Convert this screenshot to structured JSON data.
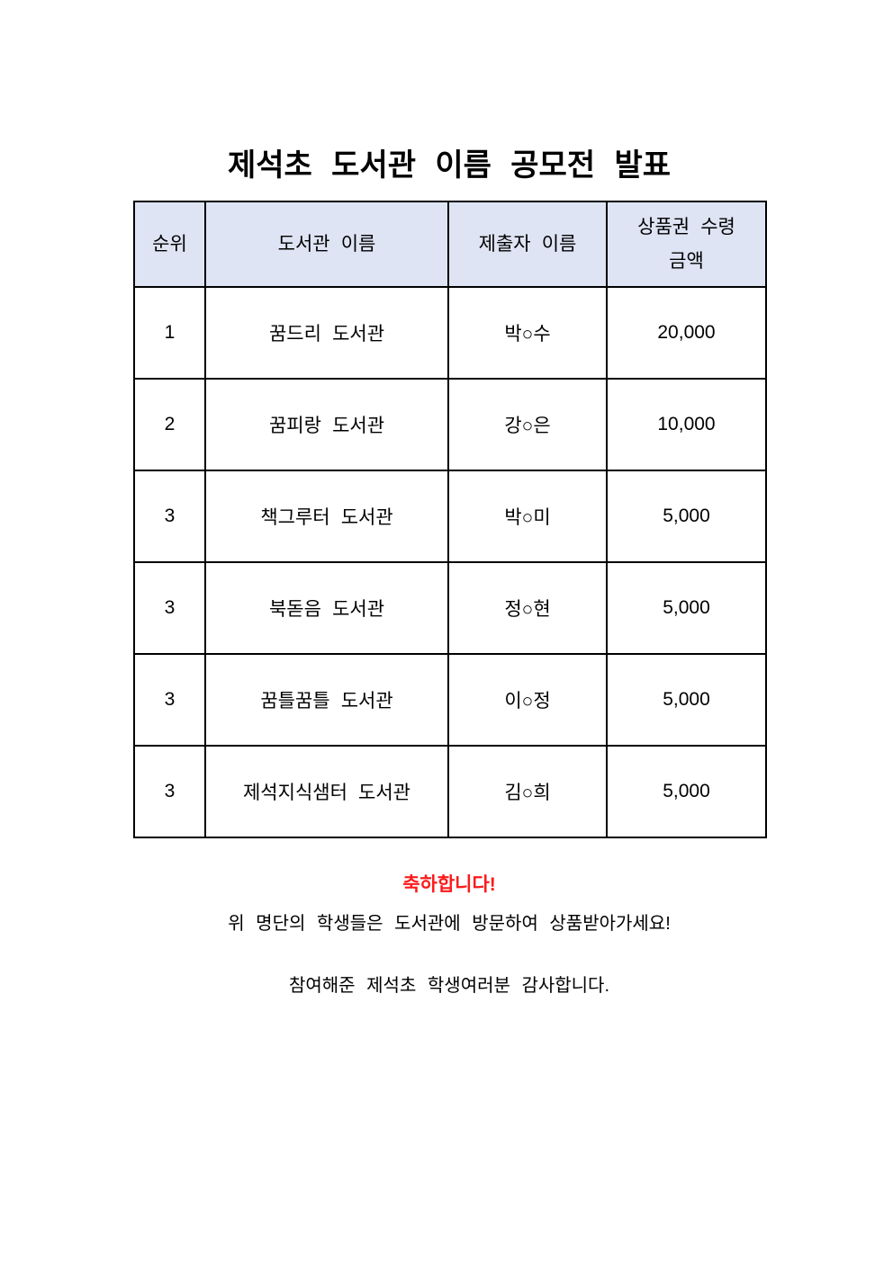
{
  "page": {
    "title": "제석초 도서관 이름 공모전 발표"
  },
  "table": {
    "headers": [
      "순위",
      "도서관 이름",
      "제출자 이름",
      "상품권 수령\n금액"
    ],
    "rows": [
      {
        "rank": "1",
        "library_name": "꿈드리 도서관",
        "submitter": "박○수",
        "amount": "20,000"
      },
      {
        "rank": "2",
        "library_name": "꿈피랑 도서관",
        "submitter": "강○은",
        "amount": "10,000"
      },
      {
        "rank": "3",
        "library_name": "책그루터 도서관",
        "submitter": "박○미",
        "amount": "5,000"
      },
      {
        "rank": "3",
        "library_name": "북돋음 도서관",
        "submitter": "정○현",
        "amount": "5,000"
      },
      {
        "rank": "3",
        "library_name": "꿈틀꿈틀 도서관",
        "submitter": "이○정",
        "amount": "5,000"
      },
      {
        "rank": "3",
        "library_name": "제석지식샘터 도서관",
        "submitter": "김○희",
        "amount": "5,000"
      }
    ]
  },
  "footer": {
    "congrats": "축하합니다!",
    "line1": "위 명단의 학생들은 도서관에 방문하여 상품받아가세요!",
    "line2": "참여해준 제석초 학생여러분 감사합니다."
  },
  "colors": {
    "header_bg": "#dfe4f4",
    "congrats_red": "#fb1b1b"
  }
}
